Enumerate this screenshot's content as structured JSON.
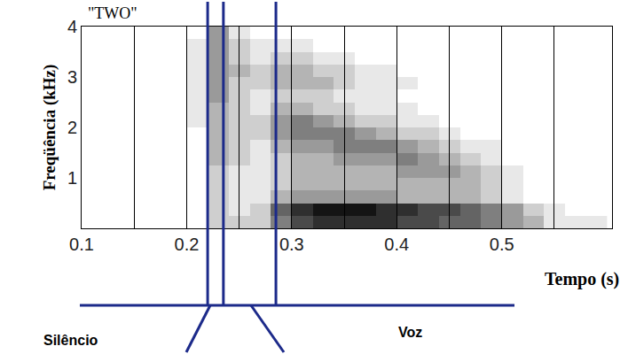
{
  "chart_data": {
    "type": "heatmap",
    "title": "\"TWO\"",
    "x_label": "Tempo (s)",
    "y_label": "Freqüência (kHz)",
    "x": [
      0.21,
      0.23,
      0.25,
      0.27,
      0.29,
      0.31,
      0.33,
      0.35,
      0.37,
      0.39,
      0.41,
      0.43,
      0.45,
      0.47,
      0.49,
      0.51,
      0.53,
      0.55,
      0.57,
      0.59
    ],
    "y": [
      0.125,
      0.375,
      0.625,
      0.875,
      1.125,
      1.375,
      1.625,
      1.875,
      2.125,
      2.375,
      2.625,
      2.875,
      3.125,
      3.375,
      3.625,
      3.875
    ],
    "z": [
      [
        0,
        2,
        2,
        2,
        5,
        7,
        8,
        8,
        8,
        8,
        7,
        7,
        6,
        6,
        5,
        4,
        3,
        1,
        1,
        1
      ],
      [
        0,
        2,
        1,
        2,
        6,
        8,
        9,
        9,
        9,
        8,
        8,
        7,
        7,
        6,
        5,
        4,
        2,
        1,
        0,
        0
      ],
      [
        0,
        2,
        1,
        1,
        3,
        4,
        4,
        4,
        4,
        4,
        3,
        3,
        3,
        3,
        2,
        1,
        0,
        0,
        0,
        0
      ],
      [
        0,
        2,
        1,
        1,
        2,
        3,
        3,
        3,
        3,
        3,
        3,
        3,
        3,
        3,
        2,
        1,
        0,
        0,
        0,
        0
      ],
      [
        0,
        2,
        1,
        1,
        2,
        3,
        3,
        3,
        3,
        3,
        4,
        4,
        4,
        3,
        2,
        1,
        0,
        0,
        0,
        0
      ],
      [
        0,
        3,
        2,
        1,
        2,
        3,
        3,
        4,
        4,
        4,
        5,
        4,
        3,
        2,
        1,
        0,
        0,
        0,
        0,
        0
      ],
      [
        0,
        3,
        2,
        1,
        3,
        4,
        4,
        5,
        5,
        5,
        4,
        3,
        2,
        1,
        1,
        0,
        0,
        0,
        0,
        0
      ],
      [
        0,
        3,
        2,
        2,
        4,
        5,
        5,
        5,
        4,
        3,
        2,
        2,
        1,
        0,
        0,
        0,
        0,
        0,
        0,
        0
      ],
      [
        1,
        3,
        2,
        2,
        4,
        5,
        4,
        3,
        2,
        2,
        1,
        1,
        0,
        0,
        0,
        0,
        0,
        0,
        0,
        0
      ],
      [
        1,
        3,
        2,
        1,
        3,
        3,
        2,
        2,
        1,
        1,
        1,
        0,
        0,
        0,
        0,
        0,
        0,
        0,
        0,
        0
      ],
      [
        1,
        4,
        2,
        1,
        2,
        2,
        2,
        1,
        1,
        1,
        0,
        0,
        0,
        0,
        0,
        0,
        0,
        0,
        0,
        0
      ],
      [
        1,
        4,
        2,
        2,
        3,
        3,
        3,
        2,
        1,
        1,
        1,
        0,
        0,
        0,
        0,
        0,
        0,
        0,
        0,
        0
      ],
      [
        1,
        4,
        3,
        2,
        3,
        3,
        2,
        2,
        1,
        1,
        0,
        0,
        0,
        0,
        0,
        0,
        0,
        0,
        0,
        0
      ],
      [
        1,
        4,
        2,
        1,
        2,
        2,
        1,
        1,
        0,
        0,
        0,
        0,
        0,
        0,
        0,
        0,
        0,
        0,
        0,
        0
      ],
      [
        1,
        4,
        2,
        1,
        1,
        1,
        0,
        0,
        0,
        0,
        0,
        0,
        0,
        0,
        0,
        0,
        0,
        0,
        0,
        0
      ],
      [
        0,
        4,
        1,
        0,
        0,
        0,
        0,
        0,
        0,
        0,
        0,
        0,
        0,
        0,
        0,
        0,
        0,
        0,
        0,
        0
      ]
    ],
    "zlim": [
      0,
      9
    ],
    "xlim": [
      0.1,
      0.605
    ],
    "xticks": [
      0.1,
      0.2,
      0.3,
      0.4,
      0.5
    ],
    "ylim": [
      0,
      4
    ],
    "yticks": [
      1,
      2,
      3,
      4
    ],
    "grid": "x",
    "boundaries": [
      0.22,
      0.235,
      0.285
    ],
    "annotations": [
      "Silêncio",
      "Voz"
    ],
    "color": "#1c2a8a"
  }
}
